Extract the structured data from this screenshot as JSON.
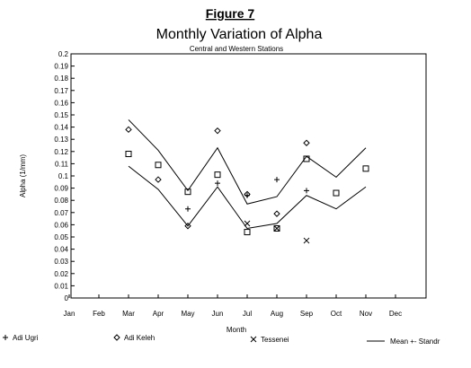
{
  "figure_label": "Figure 7",
  "chart_data": {
    "type": "line",
    "title": "Monthly Variation of Alpha",
    "subtitle": "Central and Western Stations",
    "xlabel": "Month",
    "ylabel": "Alpha (1/mm)",
    "categories": [
      "Jan",
      "Feb",
      "Mar",
      "Apr",
      "May",
      "Jun",
      "Jul",
      "Aug",
      "Sep",
      "Oct",
      "Nov",
      "Dec"
    ],
    "y_ticks": [
      "0",
      "0.01",
      "0.02",
      "0.03",
      "0.04",
      "0.05",
      "0.06",
      "0.07",
      "0.08",
      "0.09",
      "0.1",
      "0.11",
      "0.12",
      "0.13",
      "0.14",
      "0.15",
      "0.16",
      "0.17",
      "0.18",
      "0.19",
      "0.2"
    ],
    "ylim": [
      0,
      0.2
    ],
    "grid": false,
    "legend_position": "bottom",
    "series": [
      {
        "name": "Adi Ugri",
        "marker": "plus",
        "points": [
          {
            "x": "May",
            "y": 0.073
          },
          {
            "x": "Jun",
            "y": 0.094
          },
          {
            "x": "Jul",
            "y": 0.084
          },
          {
            "x": "Aug",
            "y": 0.097
          },
          {
            "x": "Sep",
            "y": 0.088
          }
        ]
      },
      {
        "name": "Adi Keleh",
        "marker": "diamond",
        "points": [
          {
            "x": "Mar",
            "y": 0.138
          },
          {
            "x": "Apr",
            "y": 0.097
          },
          {
            "x": "May",
            "y": 0.059
          },
          {
            "x": "Jun",
            "y": 0.137
          },
          {
            "x": "Jul",
            "y": 0.085
          },
          {
            "x": "Aug",
            "y": 0.069
          },
          {
            "x": "Sep",
            "y": 0.127
          }
        ]
      },
      {
        "name": "Tessenei",
        "marker": "x",
        "points": [
          {
            "x": "Jul",
            "y": 0.061
          },
          {
            "x": "Aug",
            "y": 0.057
          },
          {
            "x": "Sep",
            "y": 0.047
          }
        ]
      },
      {
        "name": "",
        "marker": "square",
        "points": [
          {
            "x": "Mar",
            "y": 0.118
          },
          {
            "x": "Apr",
            "y": 0.109
          },
          {
            "x": "May",
            "y": 0.087
          },
          {
            "x": "Jun",
            "y": 0.101
          },
          {
            "x": "Jul",
            "y": 0.054
          },
          {
            "x": "Aug",
            "y": 0.057
          },
          {
            "x": "Sep",
            "y": 0.114
          },
          {
            "x": "Oct",
            "y": 0.086
          },
          {
            "x": "Nov",
            "y": 0.106
          }
        ]
      },
      {
        "name": "Mean +- Standr",
        "style": "line",
        "upper": [
          {
            "x": "Mar",
            "y": 0.146
          },
          {
            "x": "Apr",
            "y": 0.121
          },
          {
            "x": "May",
            "y": 0.088
          },
          {
            "x": "Jun",
            "y": 0.123
          },
          {
            "x": "Jul",
            "y": 0.077
          },
          {
            "x": "Aug",
            "y": 0.083
          },
          {
            "x": "Sep",
            "y": 0.116
          },
          {
            "x": "Oct",
            "y": 0.099
          },
          {
            "x": "Nov",
            "y": 0.123
          }
        ],
        "lower": [
          {
            "x": "Mar",
            "y": 0.108
          },
          {
            "x": "Apr",
            "y": 0.089
          },
          {
            "x": "May",
            "y": 0.059
          },
          {
            "x": "Jun",
            "y": 0.091
          },
          {
            "x": "Jul",
            "y": 0.057
          },
          {
            "x": "Aug",
            "y": 0.061
          },
          {
            "x": "Sep",
            "y": 0.084
          },
          {
            "x": "Oct",
            "y": 0.073
          },
          {
            "x": "Nov",
            "y": 0.091
          }
        ]
      }
    ]
  }
}
